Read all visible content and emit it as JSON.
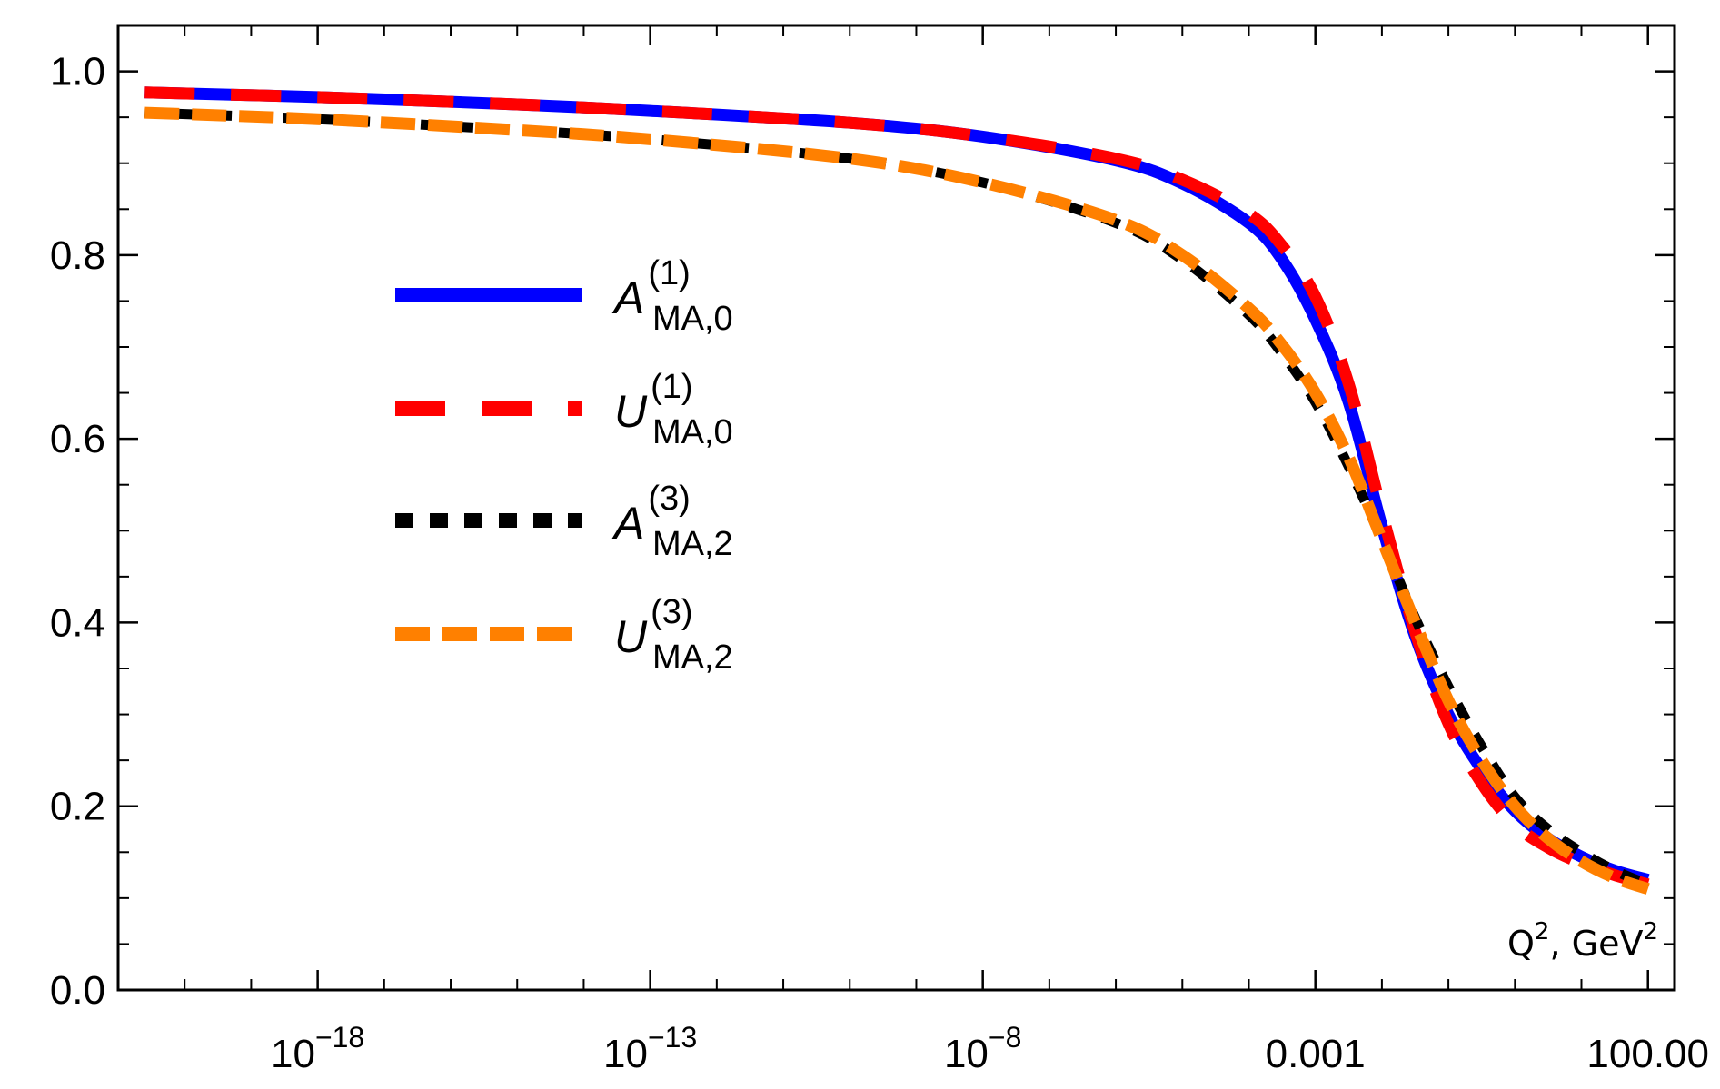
{
  "chart_data": {
    "type": "line",
    "title": "",
    "xlabel": "Q",
    "xlabel_sup": "2",
    "xlabel_sep": ", ",
    "xlabel_unit": "GeV",
    "xlabel_unit_sup": "2",
    "ylabel": "",
    "xscale": "log",
    "xlim_log10": [
      -21,
      2.4
    ],
    "ylim": [
      0.0,
      1.05
    ],
    "grid": false,
    "legend_position": "center-left",
    "y_ticks": [
      {
        "value": 0.0,
        "label": "0.0"
      },
      {
        "value": 0.2,
        "label": "0.2"
      },
      {
        "value": 0.4,
        "label": "0.4"
      },
      {
        "value": 0.6,
        "label": "0.6"
      },
      {
        "value": 0.8,
        "label": "0.8"
      },
      {
        "value": 1.0,
        "label": "1.0"
      }
    ],
    "x_ticks": [
      {
        "log10": -18,
        "base": "10",
        "exp": "−18"
      },
      {
        "log10": -13,
        "base": "10",
        "exp": "−13"
      },
      {
        "log10": -8,
        "base": "10",
        "exp": "−8"
      },
      {
        "log10": -3,
        "base": "0.001",
        "exp": ""
      },
      {
        "log10": 2,
        "base": "100.00",
        "exp": ""
      }
    ],
    "series": [
      {
        "name": "A(1)_MA,0",
        "legend_main": "A",
        "legend_sup": "(1)",
        "legend_sub": "MA,0",
        "color": "#0000ff",
        "style": "solid",
        "x_log10": [
          -20.6,
          -18,
          -15,
          -13,
          -10,
          -8,
          -6,
          -5,
          -4,
          -3.5,
          -3,
          -2.5,
          -2,
          -1.5,
          -1,
          -0.5,
          0,
          0.5,
          1,
          1.5,
          2
        ],
        "y": [
          0.977,
          0.972,
          0.964,
          0.957,
          0.944,
          0.929,
          0.903,
          0.878,
          0.835,
          0.795,
          0.73,
          0.64,
          0.505,
          0.385,
          0.3,
          0.24,
          0.195,
          0.165,
          0.145,
          0.13,
          0.12
        ]
      },
      {
        "name": "U(1)_MA,0",
        "legend_main": "U",
        "legend_sup": "(1)",
        "legend_sub": "MA,0",
        "color": "#ff0000",
        "style": "long-dash",
        "x_log10": [
          -20.6,
          -18,
          -15,
          -13,
          -10,
          -8,
          -6,
          -5,
          -4,
          -3.5,
          -3,
          -2.5,
          -2,
          -1.5,
          -1,
          -0.5,
          0,
          0.5,
          1,
          1.5,
          2
        ],
        "y": [
          0.977,
          0.972,
          0.964,
          0.957,
          0.944,
          0.929,
          0.905,
          0.882,
          0.845,
          0.81,
          0.755,
          0.66,
          0.52,
          0.39,
          0.29,
          0.225,
          0.18,
          0.155,
          0.138,
          0.125,
          0.115
        ]
      },
      {
        "name": "A(3)_MA,2",
        "legend_main": "A",
        "legend_sup": "(3)",
        "legend_sub": "MA,2",
        "color": "#000000",
        "style": "short-dash",
        "x_log10": [
          -20.6,
          -18,
          -15,
          -13,
          -10,
          -8,
          -6,
          -5,
          -4,
          -3.5,
          -3,
          -2.5,
          -2,
          -1.5,
          -1,
          -0.5,
          0,
          0.5,
          1,
          1.5,
          2
        ],
        "y": [
          0.955,
          0.948,
          0.936,
          0.926,
          0.905,
          0.879,
          0.835,
          0.795,
          0.735,
          0.693,
          0.64,
          0.57,
          0.49,
          0.405,
          0.33,
          0.265,
          0.21,
          0.175,
          0.15,
          0.13,
          0.115
        ]
      },
      {
        "name": "U(3)_MA,2",
        "legend_main": "U",
        "legend_sup": "(3)",
        "legend_sub": "MA,2",
        "color": "#ff8000",
        "style": "dash",
        "x_log10": [
          -20.6,
          -18,
          -15,
          -13,
          -10,
          -8,
          -6,
          -5,
          -4,
          -3.5,
          -3,
          -2.5,
          -2,
          -1.5,
          -1,
          -0.5,
          0,
          0.5,
          1,
          1.5,
          2
        ],
        "y": [
          0.955,
          0.948,
          0.936,
          0.926,
          0.905,
          0.879,
          0.838,
          0.8,
          0.742,
          0.702,
          0.65,
          0.58,
          0.49,
          0.4,
          0.315,
          0.25,
          0.2,
          0.165,
          0.14,
          0.122,
          0.11
        ]
      }
    ]
  }
}
